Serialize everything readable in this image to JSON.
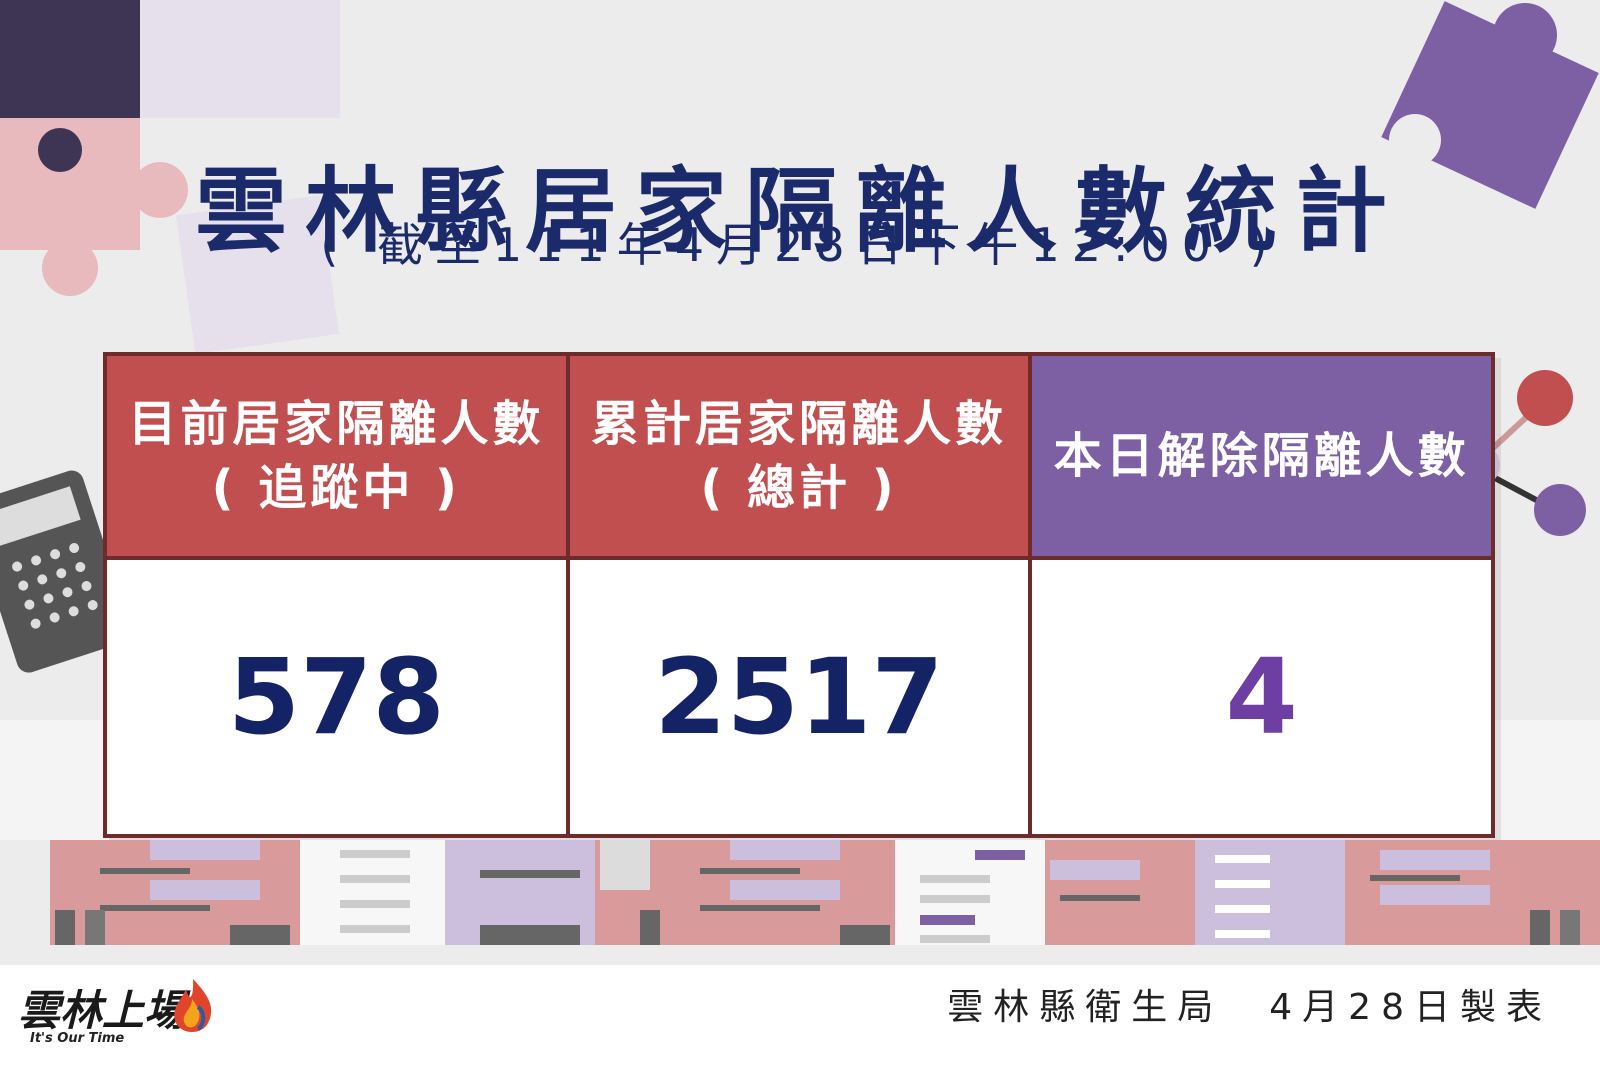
{
  "title": "雲林縣居家隔離人數統計",
  "subtitle": "( 截至111年4月28日下午12:00 )",
  "stats": [
    {
      "header_line1": "目前居家隔離人數",
      "header_line2": "( 追蹤中 )",
      "value": "578"
    },
    {
      "header_line1": "累計居家隔離人數",
      "header_line2": "( 總計 )",
      "value": "2517"
    },
    {
      "header_line1": "本日解除隔離人數",
      "header_line2": "",
      "value": "4"
    }
  ],
  "colors": {
    "header_red": "#c14f4f",
    "header_purple": "#7d5fa3",
    "number_navy": "#132366",
    "number_purple": "#6d3fa3",
    "title_navy": "#1b2a6b"
  },
  "footer": {
    "logo_text": "雲林上場",
    "logo_subtitle": "It's Our Time",
    "credit": "雲林縣衛生局　4月28日製表"
  },
  "icons": [
    "puzzle-piece-icon",
    "calculator-icon",
    "molecule-icon",
    "flame-logo-icon"
  ]
}
